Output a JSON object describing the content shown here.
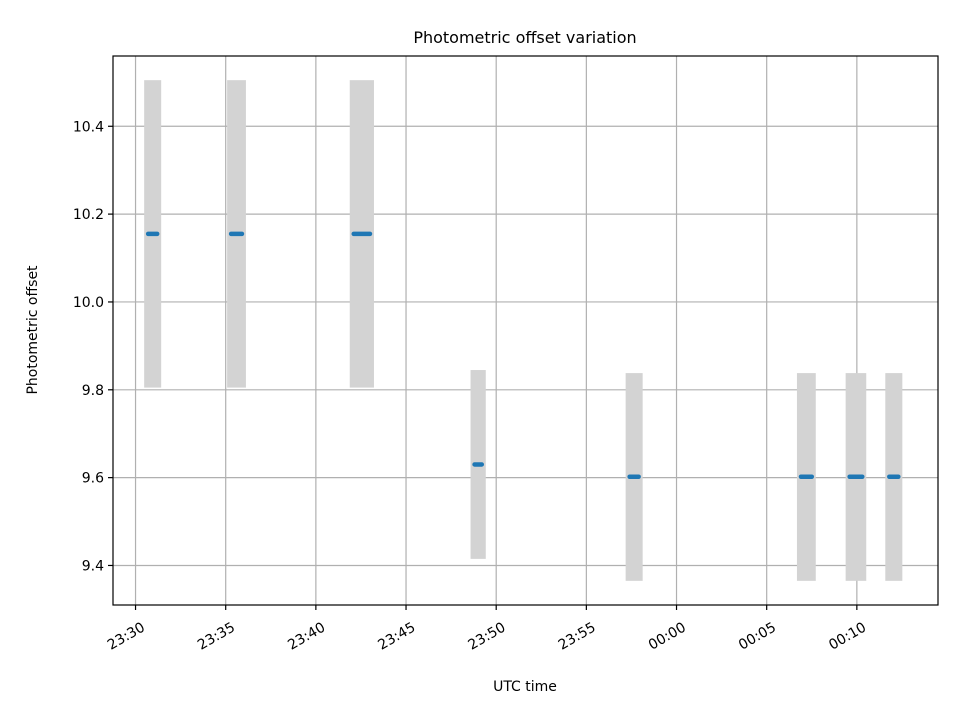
{
  "chart_data": {
    "type": "scatter",
    "title": "Photometric offset variation",
    "xlabel": "UTC time",
    "ylabel": "Photometric offset",
    "x_tick_labels": [
      "23:30",
      "23:35",
      "23:40",
      "23:45",
      "23:50",
      "23:55",
      "00:00",
      "00:05",
      "00:10"
    ],
    "x_ticks_min": [
      0,
      5,
      10,
      15,
      20,
      25,
      30,
      35,
      40
    ],
    "y_ticks": [
      9.4,
      9.6,
      9.8,
      10.0,
      10.2,
      10.4
    ],
    "y_tick_labels": [
      "9.4",
      "9.6",
      "9.8",
      "10.0",
      "10.2",
      "10.4"
    ],
    "xlim_min": [
      -1.25,
      44.5
    ],
    "ylim": [
      9.31,
      10.56
    ],
    "grid": true,
    "series": [
      {
        "color": "#1f77b4",
        "error_color": "#d3d3d3",
        "points": [
          {
            "t0": 0.7,
            "t1": 1.2,
            "y": 10.155,
            "err_lo": 9.805,
            "err_hi": 10.505
          },
          {
            "t0": 5.3,
            "t1": 5.9,
            "y": 10.155,
            "err_lo": 9.805,
            "err_hi": 10.505
          },
          {
            "t0": 12.1,
            "t1": 13.0,
            "y": 10.155,
            "err_lo": 9.805,
            "err_hi": 10.505
          },
          {
            "t0": 18.8,
            "t1": 19.2,
            "y": 9.63,
            "err_lo": 9.415,
            "err_hi": 9.845
          },
          {
            "t0": 27.4,
            "t1": 27.9,
            "y": 9.602,
            "err_lo": 9.365,
            "err_hi": 9.838
          },
          {
            "t0": 36.9,
            "t1": 37.5,
            "y": 9.602,
            "err_lo": 9.365,
            "err_hi": 9.838
          },
          {
            "t0": 39.6,
            "t1": 40.3,
            "y": 9.602,
            "err_lo": 9.365,
            "err_hi": 9.838
          },
          {
            "t0": 41.8,
            "t1": 42.3,
            "y": 9.602,
            "err_lo": 9.365,
            "err_hi": 9.838
          }
        ]
      }
    ]
  }
}
